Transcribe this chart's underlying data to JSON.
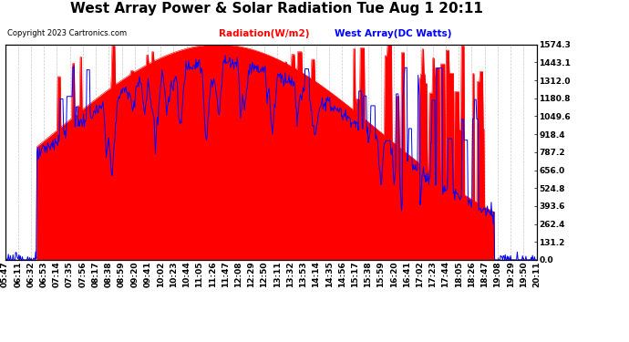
{
  "title": "West Array Power & Solar Radiation Tue Aug 1 20:11",
  "copyright": "Copyright 2023 Cartronics.com",
  "legend_radiation": "Radiation(W/m2)",
  "legend_west": "West Array(DC Watts)",
  "ymax": 1574.3,
  "yticks": [
    0.0,
    131.2,
    262.4,
    393.6,
    524.8,
    656.0,
    787.2,
    918.4,
    1049.6,
    1180.8,
    1312.0,
    1443.1,
    1574.3
  ],
  "background_color": "#ffffff",
  "plot_bg_color": "#ffffff",
  "grid_color": "#bbbbbb",
  "radiation_fill_color": "#ff0000",
  "radiation_line_color": "#ff0000",
  "west_line_color": "#0000ff",
  "title_fontsize": 11,
  "tick_label_fontsize": 6.5,
  "copyright_fontsize": 6,
  "legend_fontsize": 7.5,
  "xtick_labels": [
    "05:47",
    "06:11",
    "06:32",
    "06:53",
    "07:14",
    "07:35",
    "07:56",
    "08:17",
    "08:38",
    "08:59",
    "09:20",
    "09:41",
    "10:02",
    "10:23",
    "10:44",
    "11:05",
    "11:26",
    "11:47",
    "12:08",
    "12:29",
    "12:50",
    "13:11",
    "13:32",
    "13:53",
    "14:14",
    "14:35",
    "14:56",
    "15:17",
    "15:38",
    "15:59",
    "16:20",
    "16:41",
    "17:02",
    "17:23",
    "17:44",
    "18:05",
    "18:26",
    "18:47",
    "19:08",
    "19:29",
    "19:50",
    "20:11"
  ],
  "n_points": 800
}
